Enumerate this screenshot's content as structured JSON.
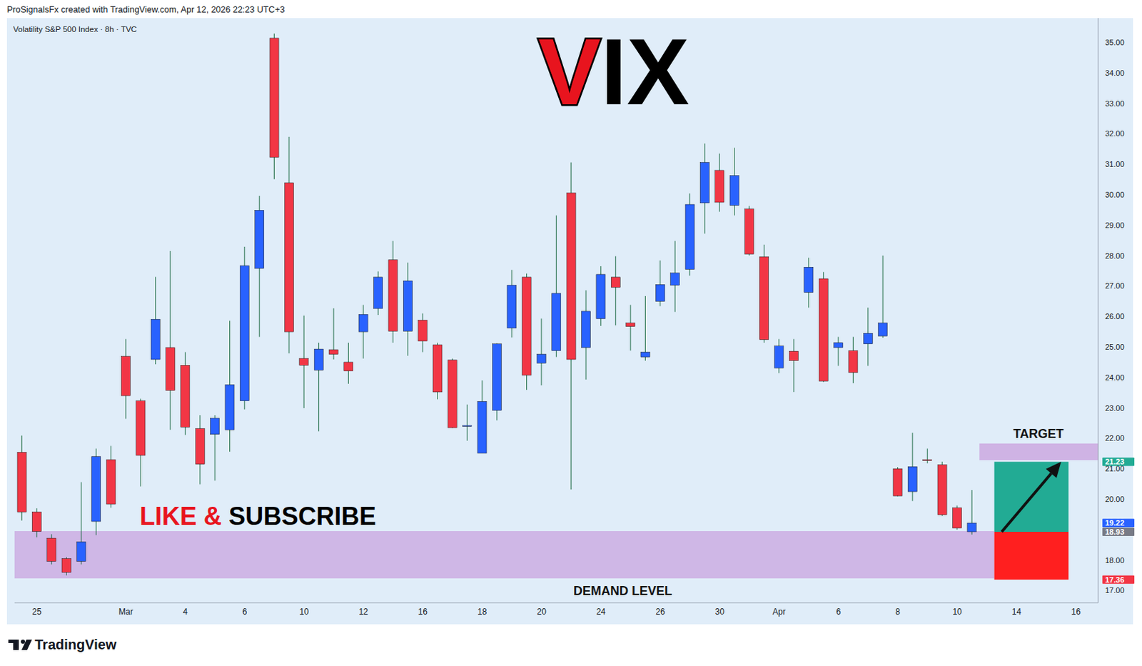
{
  "chart_data": {
    "type": "candlestick",
    "header": "ProSignalsFx created with TradingView.com, Apr 12, 2026 22:23 UTC+3",
    "title": "VIX",
    "subtitle": "Volatility S&P 500 Index · 8h · TVC",
    "categories": [
      null,
      "25",
      null,
      null,
      null,
      null,
      null,
      "Mar",
      null,
      null,
      null,
      "4",
      null,
      null,
      null,
      "6",
      null,
      null,
      null,
      "10",
      null,
      null,
      null,
      "12",
      null,
      null,
      null,
      "16",
      null,
      null,
      null,
      "18",
      null,
      null,
      null,
      "20",
      null,
      null,
      null,
      "24",
      null,
      null,
      null,
      "26",
      null,
      null,
      null,
      "30",
      null,
      null,
      null,
      "Apr",
      null,
      null,
      null,
      "6",
      null,
      null,
      null,
      "8",
      null,
      null,
      null,
      "10",
      null,
      null,
      null,
      "14",
      null,
      null,
      null,
      "16",
      null
    ],
    "open": [
      21.54,
      19.58,
      18.72,
      18.05,
      17.96,
      19.27,
      21.3,
      24.69,
      23.23,
      24.59,
      24.98,
      24.4,
      22.32,
      22.13,
      22.28,
      23.23,
      27.58,
      35.14,
      30.39,
      24.62,
      24.24,
      24.91,
      24.5,
      25.5,
      26.26,
      27.86,
      25.52,
      25.88,
      25.07,
      24.57,
      22.39,
      21.51,
      22.92,
      25.62,
      27.29,
      24.47,
      24.88,
      30.06,
      24.98,
      25.93,
      27.29,
      25.79,
      24.67,
      26.5,
      27.03,
      27.55,
      29.73,
      30.8,
      29.65,
      29.53,
      27.96,
      24.31,
      24.86,
      26.79,
      27.24,
      24.98,
      24.88,
      25.1,
      25.36,
      21.0,
      20.25,
      21.3,
      21.13,
      19.72,
      18.93,
      null,
      null,
      null,
      null,
      null,
      null,
      null,
      null
    ],
    "high": [
      22.09,
      19.7,
      18.85,
      18.1,
      20.56,
      21.66,
      21.75,
      25.26,
      23.3,
      27.3,
      28.15,
      24.83,
      22.76,
      22.76,
      25.86,
      28.29,
      29.96,
      35.29,
      31.9,
      26.03,
      25.14,
      26.27,
      25.14,
      26.38,
      27.48,
      28.48,
      27.77,
      26.1,
      25.14,
      24.62,
      23.11,
      23.9,
      25.12,
      27.53,
      27.41,
      25.93,
      29.32,
      31.06,
      26.86,
      27.65,
      27.98,
      26.38,
      26.67,
      27.84,
      28.48,
      30.04,
      31.68,
      31.35,
      31.54,
      29.63,
      28.36,
      25.26,
      25.26,
      27.93,
      27.46,
      25.33,
      25.33,
      26.29,
      28.0,
      21.05,
      22.18,
      21.66,
      21.23,
      19.79,
      20.3,
      null,
      null,
      null,
      null,
      null,
      null,
      null,
      null
    ],
    "low": [
      19.3,
      18.75,
      17.86,
      17.5,
      17.86,
      18.82,
      19.72,
      22.64,
      20.42,
      24.43,
      22.28,
      22.11,
      20.49,
      20.61,
      21.56,
      22.95,
      25.33,
      30.51,
      24.79,
      22.99,
      22.23,
      24.59,
      23.79,
      24.62,
      26.05,
      25.14,
      24.71,
      24.83,
      23.28,
      22.33,
      21.92,
      21.51,
      22.59,
      25.31,
      23.59,
      23.74,
      24.67,
      20.32,
      23.93,
      25.69,
      25.71,
      24.88,
      24.55,
      26.34,
      26.15,
      27.34,
      28.72,
      29.44,
      29.32,
      28.0,
      25.14,
      24.14,
      23.52,
      26.29,
      23.85,
      24.38,
      23.81,
      24.38,
      25.3,
      20.09,
      19.94,
      21.18,
      19.45,
      19.0,
      18.84,
      null,
      null,
      null,
      null,
      null,
      null,
      null,
      null
    ],
    "close": [
      19.58,
      18.94,
      17.96,
      17.6,
      18.6,
      21.4,
      19.84,
      23.4,
      21.44,
      25.91,
      23.57,
      22.37,
      21.15,
      22.66,
      23.76,
      27.67,
      29.49,
      31.23,
      25.5,
      24.4,
      24.93,
      24.76,
      24.21,
      26.07,
      27.29,
      25.52,
      27.17,
      25.19,
      23.52,
      22.35,
      22.42,
      23.21,
      25.1,
      27.03,
      24.07,
      24.76,
      26.76,
      24.59,
      26.17,
      27.38,
      26.96,
      25.67,
      24.83,
      27.05,
      27.43,
      29.68,
      31.06,
      29.75,
      30.63,
      28.05,
      25.24,
      25.03,
      24.55,
      27.62,
      23.88,
      25.14,
      24.16,
      25.45,
      25.79,
      20.11,
      21.07,
      21.27,
      19.49,
      19.05,
      19.22,
      null,
      null,
      null,
      null,
      null,
      null,
      null,
      null
    ],
    "colors": {
      "up": "#2962ff",
      "down": "#f23645",
      "wick": "#1e6b45"
    },
    "ylim": [
      16.6,
      35.8
    ],
    "yticks": [
      {
        "value": 17,
        "label": "17.00"
      },
      {
        "value": 18,
        "label": "18.00"
      },
      {
        "value": 20,
        "label": "20.00"
      },
      {
        "value": 21,
        "label": "21.00"
      },
      {
        "value": 22,
        "label": "22.00"
      },
      {
        "value": 23,
        "label": "23.00"
      },
      {
        "value": 24,
        "label": "24.00"
      },
      {
        "value": 25,
        "label": "25.00"
      },
      {
        "value": 26,
        "label": "26.00"
      },
      {
        "value": 27,
        "label": "27.00"
      },
      {
        "value": 28,
        "label": "28.00"
      },
      {
        "value": 29,
        "label": "29.00"
      },
      {
        "value": 30,
        "label": "30.00"
      },
      {
        "value": 31,
        "label": "31.00"
      },
      {
        "value": 32,
        "label": "32.00"
      },
      {
        "value": 33,
        "label": "33.00"
      },
      {
        "value": 34,
        "label": "34.00"
      },
      {
        "value": 35,
        "label": "35.00"
      }
    ],
    "price_labels": [
      {
        "value": 21.23,
        "color": "#22ab94"
      },
      {
        "value": 19.22,
        "color": "#2962ff"
      },
      {
        "value": 18.93,
        "color": "#787b86"
      },
      {
        "value": 17.36,
        "color": "#f23645"
      }
    ],
    "zones": [
      {
        "label": "DEMAND LEVEL",
        "y": [
          17.4,
          18.95
        ],
        "color": "#cdb0e3"
      },
      {
        "label": "TARGET",
        "y": [
          21.28,
          21.83
        ],
        "color": "#cdb0e3"
      }
    ],
    "position": {
      "entry": 18.93,
      "target": 21.23,
      "stop": 17.36,
      "colors": [
        "#22ab94",
        "#ff1f1f"
      ]
    },
    "annotations": [
      "LIKE & SUBSCRIBE"
    ],
    "footer": "TradingView",
    "grid": false
  }
}
